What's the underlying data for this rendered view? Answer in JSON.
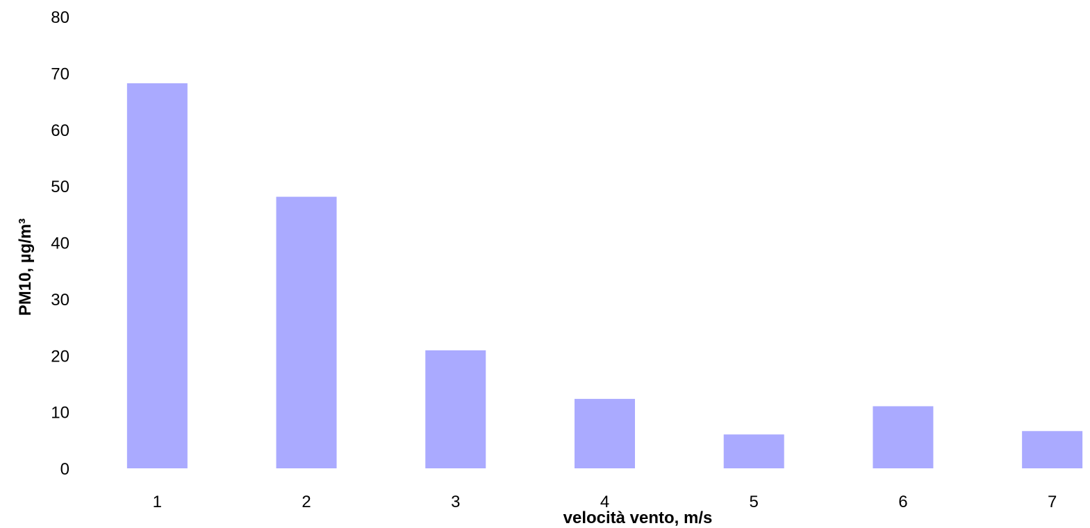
{
  "chart_data": {
    "type": "bar",
    "title": "",
    "xlabel": "velocità  vento, m/s",
    "ylabel": "PM10, µg/m³",
    "categories": [
      "1",
      "2",
      "3",
      "4",
      "5",
      "6",
      "7"
    ],
    "values": [
      68.2,
      48.1,
      20.9,
      12.3,
      6.0,
      11.0,
      6.6
    ],
    "ylim": [
      0,
      80
    ],
    "yticks": [
      "0",
      "10",
      "20",
      "30",
      "40",
      "50",
      "60",
      "70",
      "80"
    ],
    "grid": false,
    "legend": "none",
    "bar_color": "#aaaaff"
  }
}
